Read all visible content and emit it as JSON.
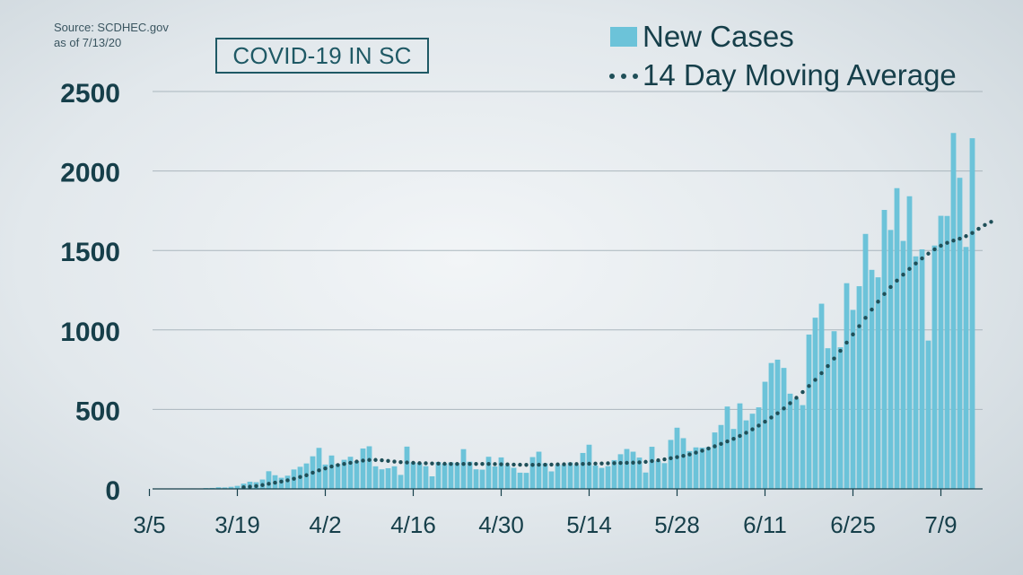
{
  "source_lines": [
    "Source: SCDHEC.gov",
    "as of 7/13/20"
  ],
  "chart_data": {
    "type": "bar",
    "title": "COVID-19 IN SC",
    "xlabel": "",
    "ylabel": "",
    "ylim": [
      0,
      2500
    ],
    "yticks": [
      0,
      500,
      1000,
      1500,
      2000,
      2500
    ],
    "grid": true,
    "legend_placement": "top-right",
    "start_date": "3/5/2020",
    "xtick_labels": [
      "3/5",
      "3/19",
      "4/2",
      "4/16",
      "4/30",
      "5/14",
      "5/28",
      "6/11",
      "6/25",
      "7/9"
    ],
    "series": [
      {
        "name": "New Cases",
        "style": "bar",
        "color": "#6cc3d9",
        "values": [
          1,
          0,
          0,
          0,
          1,
          2,
          3,
          2,
          5,
          6,
          10,
          9,
          13,
          19,
          33,
          45,
          42,
          59,
          111,
          86,
          70,
          83,
          122,
          139,
          160,
          205,
          258,
          153,
          210,
          157,
          183,
          202,
          175,
          254,
          268,
          142,
          123,
          130,
          142,
          88,
          266,
          167,
          163,
          143,
          79,
          169,
          159,
          167,
          163,
          250,
          171,
          123,
          121,
          202,
          141,
          198,
          147,
          133,
          102,
          101,
          200,
          234,
          161,
          110,
          151,
          150,
          166,
          150,
          226,
          278,
          147,
          132,
          143,
          181,
          218,
          251,
          234,
          197,
          103,
          265,
          175,
          162,
          308,
          385,
          319,
          238,
          261,
          259,
          263,
          355,
          402,
          518,
          377,
          538,
          431,
          473,
          513,
          674,
          792,
          813,
          761,
          599,
          567,
          527,
          971,
          1077,
          1165,
          885,
          992,
          891,
          1294,
          1126,
          1275,
          1604,
          1378,
          1331,
          1755,
          1629,
          1892,
          1560,
          1841,
          1463,
          1507,
          933,
          1531,
          1718,
          1717,
          2239,
          1957,
          1522,
          2206
        ]
      },
      {
        "name": "14 Day Moving Average",
        "style": "dotted-line",
        "color": "#1f4f58",
        "start_index": 14,
        "values": [
          10,
          14,
          18,
          24,
          32,
          39,
          46,
          54,
          64,
          75,
          86,
          102,
          117,
          129,
          141,
          150,
          157,
          164,
          172,
          178,
          182,
          182,
          180,
          176,
          172,
          168,
          166,
          164,
          162,
          161,
          160,
          159,
          158,
          157,
          157,
          157,
          157,
          157,
          157,
          157,
          156,
          155,
          154,
          153,
          152,
          151,
          151,
          152,
          152,
          153,
          154,
          155,
          156,
          156,
          157,
          158,
          159,
          160,
          161,
          162,
          163,
          164,
          165,
          167,
          170,
          175,
          180,
          186,
          193,
          200,
          208,
          217,
          228,
          240,
          254,
          268,
          283,
          299,
          315,
          333,
          353,
          375,
          398,
          423,
          449,
          476,
          506,
          539,
          573,
          609,
          647,
          686,
          728,
          773,
          820,
          869,
          920,
          972,
          1024,
          1076,
          1128,
          1178,
          1226,
          1270,
          1310,
          1348,
          1384,
          1418,
          1450,
          1480,
          1507,
          1530,
          1548,
          1562,
          1574,
          1590,
          1610,
          1636,
          1660,
          1680
        ]
      }
    ]
  }
}
